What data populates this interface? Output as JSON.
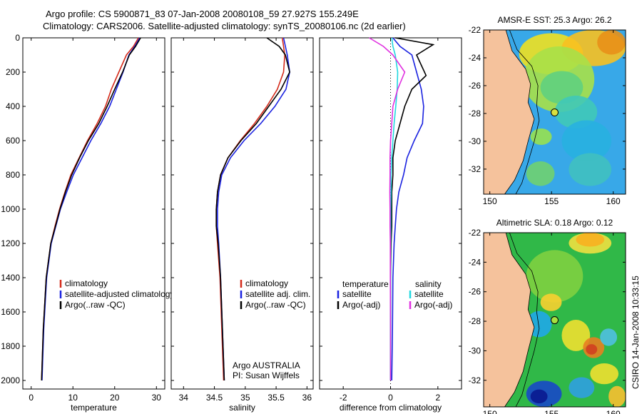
{
  "header": {
    "title_line1": "Argo profile: CS 5900871_83 07-Jan-2008 20080108_59 27.927S 155.249E",
    "title_line2": "Climatology: CARS2006. Satellite-adjusted climatology: synTS_20080106.nc (2d earlier)",
    "stamp": "CSIRO 14-Jan-2008 10:33:15"
  },
  "colors": {
    "climatology": "#d42a1a",
    "satellite": "#1a22e0",
    "argo": "#000000",
    "salinity_satellite": "#22d8e0",
    "salinity_argo": "#e030e0"
  },
  "chart_data": [
    {
      "type": "line",
      "xlabel": "temperature",
      "ylabel": "",
      "xlim": [
        -2,
        32
      ],
      "ylim": [
        2050,
        0
      ],
      "xticks": [
        "0",
        "10",
        "20",
        "30"
      ],
      "yticks": [
        "0",
        "200",
        "400",
        "600",
        "800",
        "1000",
        "1200",
        "1400",
        "1600",
        "1800",
        "2000"
      ],
      "legend": [
        "climatology",
        "satellite-adjusted climatology",
        "Argo(..raw -QC)"
      ],
      "legend_position": "lower-middle",
      "series": [
        {
          "name": "climatology",
          "color": "climatology",
          "x": [
            25.7,
            24.5,
            22.8,
            21.0,
            19.2,
            17.8,
            15.8,
            13.5,
            11.5,
            9.5,
            8.1,
            6.8,
            5.7,
            4.7,
            3.6,
            2.9,
            2.5
          ],
          "y": [
            0,
            50,
            100,
            200,
            300,
            400,
            500,
            600,
            700,
            800,
            900,
            1000,
            1100,
            1200,
            1400,
            1700,
            2000
          ]
        },
        {
          "name": "satellite-adjusted climatology",
          "color": "satellite",
          "x": [
            26.0,
            24.8,
            23.4,
            22.0,
            20.4,
            18.8,
            16.7,
            14.3,
            12.2,
            10.1,
            8.5,
            7.0,
            5.9,
            4.8,
            3.7,
            3.0,
            2.6
          ],
          "y": [
            0,
            50,
            100,
            200,
            300,
            400,
            500,
            600,
            700,
            800,
            900,
            1000,
            1100,
            1200,
            1400,
            1700,
            2000
          ]
        },
        {
          "name": "Argo(..raw -QC)",
          "color": "argo",
          "x": [
            26.2,
            25.0,
            23.5,
            21.9,
            20.0,
            18.2,
            16.2,
            13.7,
            11.6,
            9.7,
            8.2,
            6.9,
            5.8,
            4.7,
            3.6,
            2.9,
            2.5
          ],
          "y": [
            0,
            50,
            100,
            200,
            300,
            400,
            500,
            600,
            700,
            800,
            900,
            1000,
            1100,
            1200,
            1400,
            1700,
            2000
          ]
        }
      ]
    },
    {
      "type": "line",
      "xlabel": "salinity",
      "xlim": [
        33.8,
        36.1
      ],
      "ylim": [
        2050,
        0
      ],
      "xticks": [
        "34",
        "34.5",
        "35",
        "35.5",
        "36"
      ],
      "legend": [
        "climatology",
        "satellite adj. clim.",
        "Argo(..raw -QC)"
      ],
      "legend_position": "lower-middle",
      "annotation": [
        "Argo AUSTRALIA",
        "PI: Susan Wijffels"
      ],
      "series": [
        {
          "name": "climatology",
          "color": "climatology",
          "x": [
            35.6,
            35.62,
            35.64,
            35.62,
            35.52,
            35.35,
            35.15,
            34.92,
            34.72,
            34.6,
            34.55,
            34.53,
            34.53,
            34.55,
            34.59,
            34.62,
            34.65
          ],
          "y": [
            0,
            50,
            100,
            200,
            300,
            400,
            500,
            600,
            700,
            800,
            900,
            1000,
            1100,
            1200,
            1400,
            1700,
            2000
          ]
        },
        {
          "name": "satellite adj. clim.",
          "color": "satellite",
          "x": [
            35.62,
            35.65,
            35.68,
            35.72,
            35.66,
            35.48,
            35.25,
            34.98,
            34.76,
            34.62,
            34.57,
            34.55,
            34.55,
            34.57,
            34.6,
            34.63,
            34.66
          ],
          "y": [
            0,
            50,
            100,
            200,
            300,
            400,
            500,
            600,
            700,
            800,
            900,
            1000,
            1100,
            1200,
            1400,
            1700,
            2000
          ]
        },
        {
          "name": "Argo(..raw -QC)",
          "color": "argo",
          "x": [
            35.35,
            35.55,
            35.65,
            35.72,
            35.58,
            35.38,
            35.18,
            34.93,
            34.72,
            34.6,
            34.55,
            34.53,
            34.53,
            34.56,
            34.6,
            34.63,
            34.66
          ],
          "y": [
            0,
            50,
            100,
            200,
            300,
            400,
            500,
            600,
            700,
            800,
            900,
            1000,
            1100,
            1200,
            1400,
            1700,
            2000
          ]
        }
      ]
    },
    {
      "type": "line",
      "xlabel": "difference from climatology",
      "xlim": [
        -3,
        3
      ],
      "ylim": [
        2050,
        0
      ],
      "xticks": [
        "-2",
        "0",
        "2"
      ],
      "legend": [
        "temperature",
        "satellite",
        "Argo(-adj)",
        "salinity",
        "satellite",
        "Argo(-adj)"
      ],
      "legend_position": "lower",
      "series": [
        {
          "name": "temperature satellite",
          "color": "satellite",
          "x": [
            0.1,
            0.4,
            0.9,
            1.1,
            1.3,
            1.4,
            1.35,
            1.0,
            0.7,
            0.55,
            0.35,
            0.25,
            0.2,
            0.15,
            0.1,
            0.08,
            0.05
          ],
          "y": [
            0,
            50,
            100,
            200,
            300,
            400,
            500,
            600,
            700,
            800,
            900,
            1000,
            1100,
            1200,
            1400,
            1700,
            2000
          ]
        },
        {
          "name": "temperature Argo(-adj)",
          "color": "argo",
          "x": [
            0.2,
            1.8,
            1.1,
            1.5,
            0.9,
            0.6,
            0.4,
            0.2,
            0.1,
            0.1,
            0.05,
            0.05,
            0.05,
            0.02,
            0.0,
            0.0,
            0.0
          ],
          "y": [
            0,
            40,
            100,
            220,
            300,
            400,
            500,
            600,
            700,
            800,
            900,
            1000,
            1100,
            1200,
            1400,
            1700,
            2000
          ]
        },
        {
          "name": "salinity satellite",
          "color": "salinity_satellite",
          "x": [
            0.05,
            0.1,
            0.2,
            0.3,
            0.28,
            0.22,
            0.15,
            0.1,
            0.05,
            0.02,
            0.02,
            0.01,
            0.01,
            0.0,
            0.0,
            0.0,
            0.0
          ],
          "y": [
            0,
            50,
            100,
            200,
            300,
            400,
            500,
            600,
            700,
            800,
            900,
            1000,
            1100,
            1200,
            1400,
            1700,
            2000
          ]
        },
        {
          "name": "salinity Argo(-adj)",
          "color": "salinity_argo",
          "x": [
            -0.9,
            -0.3,
            0.1,
            0.6,
            0.3,
            0.1,
            0.05,
            0.0,
            -0.02,
            -0.02,
            -0.03,
            -0.02,
            -0.02,
            -0.01,
            -0.01,
            0.0,
            0.0
          ],
          "y": [
            0,
            50,
            100,
            200,
            300,
            400,
            500,
            600,
            700,
            800,
            900,
            1000,
            1100,
            1200,
            1400,
            1700,
            2000
          ]
        }
      ]
    },
    {
      "type": "heatmap",
      "title": "AMSR-E SST: 25.3 Argo: 26.2",
      "xlim": [
        149.5,
        161
      ],
      "ylim": [
        -33.8,
        -22
      ],
      "xticks": [
        "150",
        "155",
        "160"
      ],
      "yticks": [
        "-22",
        "-24",
        "-26",
        "-28",
        "-30",
        "-32"
      ],
      "argo_position": {
        "lon": 155.249,
        "lat": -27.927
      }
    },
    {
      "type": "heatmap",
      "title": "Altimetric SLA: 0.18 Argo: 0.12",
      "xlim": [
        149.5,
        161
      ],
      "ylim": [
        -33.8,
        -22
      ],
      "xticks": [
        "150",
        "155",
        "160"
      ],
      "yticks": [
        "-22",
        "-24",
        "-26",
        "-28",
        "-30",
        "-32"
      ],
      "argo_position": {
        "lon": 155.249,
        "lat": -27.927
      }
    }
  ]
}
